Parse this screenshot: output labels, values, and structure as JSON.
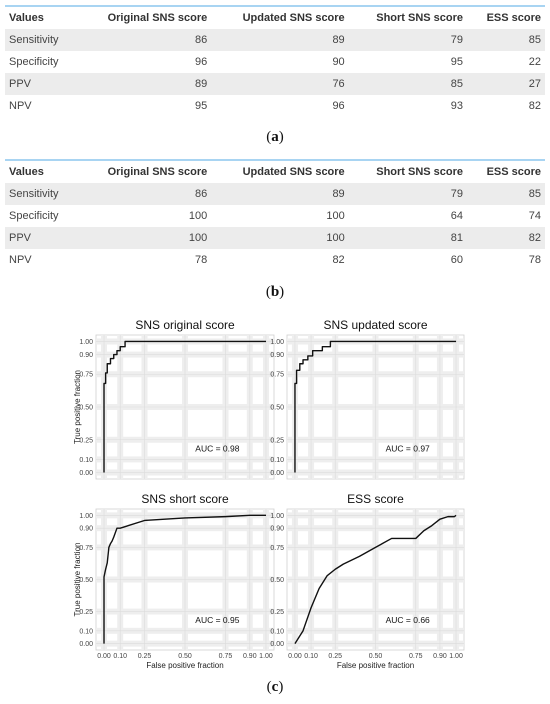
{
  "tables": [
    {
      "headers": [
        "Values",
        "Original SNS score",
        "Updated SNS score",
        "Short SNS score",
        "ESS score"
      ],
      "rows": [
        [
          "Sensitivity",
          "86",
          "89",
          "79",
          "85"
        ],
        [
          "Specificity",
          "96",
          "90",
          "95",
          "22"
        ],
        [
          "PPV",
          "89",
          "76",
          "85",
          "27"
        ],
        [
          "NPV",
          "95",
          "96",
          "93",
          "82"
        ]
      ]
    },
    {
      "headers": [
        "Values",
        "Original SNS score",
        "Updated SNS score",
        "Short SNS score",
        "ESS score"
      ],
      "rows": [
        [
          "Sensitivity",
          "86",
          "89",
          "79",
          "85"
        ],
        [
          "Specificity",
          "100",
          "100",
          "64",
          "74"
        ],
        [
          "PPV",
          "100",
          "100",
          "81",
          "82"
        ],
        [
          "NPV",
          "78",
          "82",
          "60",
          "78"
        ]
      ]
    }
  ],
  "captions": {
    "a": "a",
    "b": "b",
    "c": "c"
  },
  "chart_data": [
    {
      "type": "line",
      "title": "SNS original score",
      "xlabel": "",
      "ylabel": "True positive fraction",
      "xlim": [
        0,
        1
      ],
      "ylim": [
        0,
        1
      ],
      "xticks": [],
      "yticks": [
        "0.00",
        "0.10",
        "0.25",
        "0.50",
        "0.75",
        "0.90",
        "1.00"
      ],
      "annotation": "AUC = 0.98",
      "x": [
        0,
        0,
        0.01,
        0.01,
        0.02,
        0.02,
        0.04,
        0.04,
        0.06,
        0.06,
        0.08,
        0.08,
        0.1,
        0.1,
        0.13,
        0.13,
        1.0
      ],
      "y": [
        0,
        0.68,
        0.68,
        0.76,
        0.76,
        0.83,
        0.83,
        0.87,
        0.87,
        0.9,
        0.9,
        0.93,
        0.93,
        0.96,
        0.96,
        1.0,
        1.0
      ]
    },
    {
      "type": "line",
      "title": "SNS updated score",
      "xlabel": "",
      "ylabel": "",
      "xlim": [
        0,
        1
      ],
      "ylim": [
        0,
        1
      ],
      "xticks": [],
      "yticks": [
        "0.00",
        "0.10",
        "0.25",
        "0.50",
        "0.75",
        "0.90",
        "1.00"
      ],
      "annotation": "AUC = 0.97",
      "x": [
        0,
        0,
        0.01,
        0.01,
        0.03,
        0.03,
        0.05,
        0.05,
        0.08,
        0.08,
        0.11,
        0.11,
        0.17,
        0.17,
        0.22,
        0.22,
        1.0
      ],
      "y": [
        0,
        0.68,
        0.68,
        0.78,
        0.78,
        0.83,
        0.83,
        0.86,
        0.86,
        0.89,
        0.89,
        0.93,
        0.93,
        0.96,
        0.96,
        1.0,
        1.0
      ]
    },
    {
      "type": "line",
      "title": "SNS short score",
      "xlabel": "False positive fraction",
      "ylabel": "True positive fraction",
      "xlim": [
        0,
        1
      ],
      "ylim": [
        0,
        1
      ],
      "xticks": [
        "0.00",
        "0.10",
        "0.25",
        "0.50",
        "0.75",
        "0.90",
        "1.00"
      ],
      "yticks": [
        "0.00",
        "0.10",
        "0.25",
        "0.50",
        "0.75",
        "0.90",
        "1.00"
      ],
      "annotation": "AUC = 0.95",
      "x": [
        0,
        0,
        0.005,
        0.01,
        0.02,
        0.03,
        0.04,
        0.05,
        0.06,
        0.08,
        0.1,
        0.25,
        0.5,
        0.75,
        0.9,
        1.0
      ],
      "y": [
        0,
        0.52,
        0.55,
        0.58,
        0.63,
        0.75,
        0.78,
        0.8,
        0.83,
        0.9,
        0.9,
        0.96,
        0.98,
        0.99,
        1.0,
        1.0
      ]
    },
    {
      "type": "line",
      "title": "ESS score",
      "xlabel": "False positive fraction",
      "ylabel": "",
      "xlim": [
        0,
        1
      ],
      "ylim": [
        0,
        1
      ],
      "xticks": [
        "0.00",
        "0.10",
        "0.25",
        "0.50",
        "0.75",
        "0.90",
        "1.00"
      ],
      "yticks": [
        "0.00",
        "0.10",
        "0.25",
        "0.50",
        "0.75",
        "0.90",
        "1.00"
      ],
      "annotation": "AUC = 0.66",
      "x": [
        0,
        0.05,
        0.1,
        0.15,
        0.2,
        0.25,
        0.3,
        0.4,
        0.5,
        0.6,
        0.7,
        0.75,
        0.8,
        0.85,
        0.9,
        0.95,
        0.99,
        1.0
      ],
      "y": [
        0,
        0.1,
        0.28,
        0.43,
        0.53,
        0.58,
        0.62,
        0.68,
        0.75,
        0.82,
        0.82,
        0.82,
        0.88,
        0.92,
        0.97,
        0.99,
        0.99,
        1.0
      ]
    }
  ]
}
